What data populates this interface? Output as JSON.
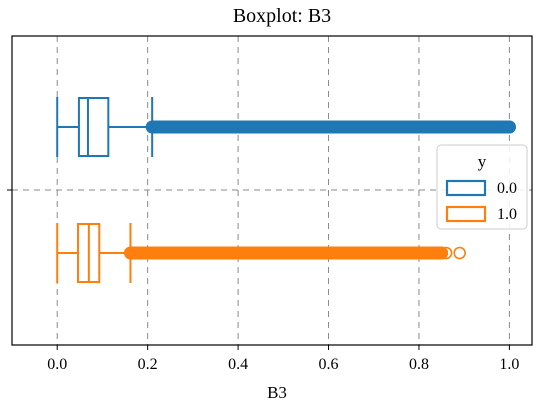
{
  "chart_data": {
    "type": "boxplot",
    "title": "Boxplot: B3",
    "xlabel": "B3",
    "ylabel": "",
    "xlim": [
      -0.1,
      1.05
    ],
    "xticks": [
      0.0,
      0.2,
      0.4,
      0.6,
      0.8,
      1.0
    ],
    "xtick_labels": [
      "0.0",
      "0.2",
      "0.4",
      "0.6",
      "0.8",
      "1.0"
    ],
    "grid": true,
    "orientation": "horizontal",
    "legend": {
      "title": "y",
      "placement": "center-right",
      "entries": [
        "0.0",
        "1.0"
      ]
    },
    "series": [
      {
        "name": "0.0",
        "color": "#1f77b4",
        "whisker_low": 0.0,
        "q1": 0.048,
        "median": 0.068,
        "q3": 0.113,
        "whisker_high": 0.21,
        "outliers_range": [
          0.21,
          1.0
        ],
        "outliers_extra": []
      },
      {
        "name": "1.0",
        "color": "#ff7f0e",
        "whisker_low": 0.0,
        "q1": 0.046,
        "median": 0.07,
        "q3": 0.093,
        "whisker_high": 0.162,
        "outliers_range": [
          0.162,
          0.85
        ],
        "outliers_extra": [
          0.86,
          0.89
        ]
      }
    ]
  }
}
